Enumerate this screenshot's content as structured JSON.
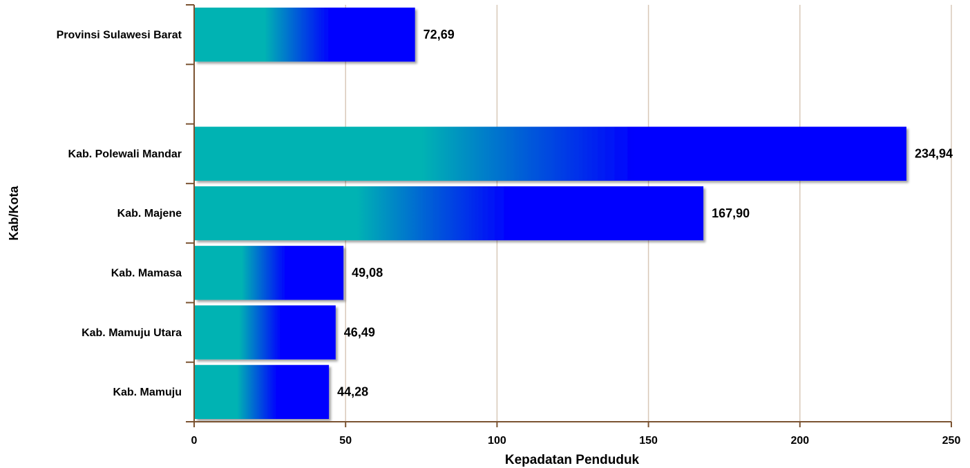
{
  "chart_data": {
    "type": "bar",
    "orientation": "horizontal",
    "title": "",
    "xlabel": "Kepadatan Penduduk",
    "ylabel": "Kab/Kota",
    "xlim": [
      0,
      250
    ],
    "xticks": [
      0,
      50,
      100,
      150,
      200,
      250
    ],
    "xtick_labels": [
      "0",
      "50",
      "100",
      "150",
      "200",
      "250"
    ],
    "grid": "vertical",
    "categories": [
      "Provinsi Sulawesi Barat",
      "",
      "Kab. Polewali Mandar",
      "Kab. Majene",
      "Kab. Mamasa",
      "Kab. Mamuju Utara",
      "Kab. Mamuju"
    ],
    "values": [
      72.69,
      null,
      234.94,
      167.9,
      49.08,
      46.49,
      44.28
    ],
    "value_labels": [
      "72,69",
      "",
      "234,94",
      "167,90",
      "49,08",
      "46,49",
      "44,28"
    ],
    "colors": {
      "bar_start": "#00b3b3",
      "bar_end": "#0000ff",
      "axis": "#7a5230",
      "grid": "#d8c8b8",
      "text": "#000000"
    }
  }
}
